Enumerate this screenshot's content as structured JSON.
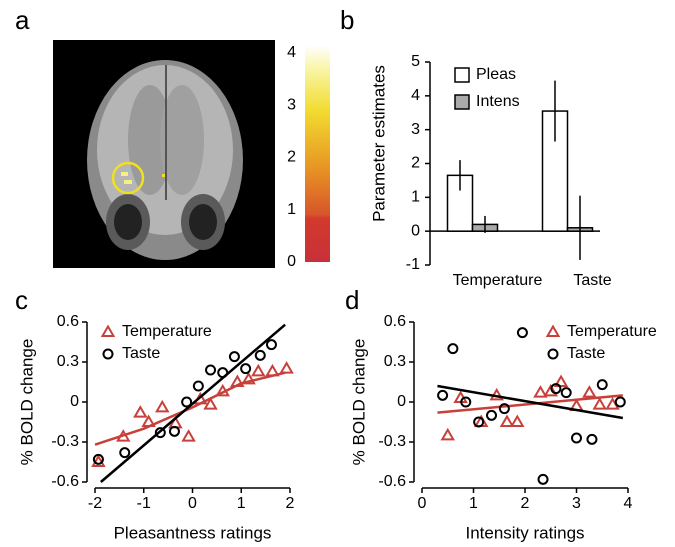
{
  "chart_data": [
    {
      "type": "colorbar",
      "title": "a",
      "ylim": [
        0,
        4.15
      ],
      "yticks": [
        0,
        1,
        2,
        3,
        4
      ]
    },
    {
      "type": "bar",
      "title": "b",
      "ylabel": "Parameter estimates",
      "categories": [
        "Temperature",
        "Taste"
      ],
      "series": [
        {
          "name": "Pleas",
          "color": "#ffffff",
          "values": [
            1.65,
            3.55
          ],
          "errors": [
            0.45,
            0.9
          ]
        },
        {
          "name": "Intens",
          "color": "#aaaaaa",
          "values": [
            0.2,
            0.1
          ],
          "errors": [
            0.25,
            0.95
          ]
        }
      ],
      "ylim": [
        -1,
        5
      ],
      "yticks": [
        -1,
        0,
        1,
        2,
        3,
        4,
        5
      ],
      "legend": "upper left"
    },
    {
      "type": "scatter",
      "title": "c",
      "xlabel": "Pleasantness ratings",
      "ylabel": "% BOLD change",
      "series": [
        {
          "name": "Temperature",
          "color": "#c8403a",
          "marker": "triangle",
          "x": [
            -1.93,
            -1.42,
            -1.07,
            -0.9,
            -0.62,
            -0.35,
            -0.08,
            0.16,
            0.37,
            0.62,
            0.92,
            1.15,
            1.35,
            1.64,
            1.93
          ],
          "y": [
            -0.45,
            -0.26,
            -0.08,
            -0.15,
            -0.04,
            -0.16,
            -0.26,
            0.02,
            -0.02,
            0.08,
            0.15,
            0.17,
            0.23,
            0.23,
            0.25
          ],
          "fit": {
            "x": [
              -2,
              -1,
              0,
              1,
              1.9
            ],
            "y": [
              -0.32,
              -0.2,
              -0.04,
              0.14,
              0.22
            ]
          }
        },
        {
          "name": "Taste",
          "color": "#000000",
          "marker": "circle",
          "x": [
            -1.93,
            -1.39,
            -0.66,
            -0.37,
            -0.12,
            0.12,
            0.37,
            0.62,
            0.86,
            1.09,
            1.39,
            1.62
          ],
          "y": [
            -0.43,
            -0.38,
            -0.23,
            -0.22,
            0,
            0.12,
            0.24,
            0.22,
            0.34,
            0.25,
            0.35,
            0.43
          ],
          "fit": {
            "x": [
              -1.88,
              1.9
            ],
            "y": [
              -0.6,
              0.58
            ]
          }
        }
      ],
      "xlim": [
        -2,
        2
      ],
      "xticks": [
        -2,
        -1,
        0,
        1,
        2
      ],
      "ylim": [
        -0.6,
        0.6
      ],
      "yticks": [
        -0.6,
        -0.3,
        0,
        0.3,
        0.6
      ],
      "legend": "upper left"
    },
    {
      "type": "scatter",
      "title": "d",
      "xlabel": "Intensity ratings",
      "ylabel": "% BOLD change",
      "series": [
        {
          "name": "Temperature",
          "color": "#c8403a",
          "marker": "triangle",
          "x": [
            0.5,
            0.75,
            1.15,
            1.45,
            1.65,
            1.85,
            2.3,
            2.5,
            2.7,
            3.0,
            3.25,
            3.45,
            3.7
          ],
          "y": [
            -0.25,
            0.03,
            -0.15,
            0.05,
            -0.15,
            -0.15,
            0.07,
            0.08,
            0.15,
            -0.03,
            0.07,
            -0.02,
            -0.02
          ],
          "fit": {
            "x": [
              0.3,
              3.9
            ],
            "y": [
              -0.08,
              0.05
            ]
          }
        },
        {
          "name": "Taste",
          "color": "#000000",
          "marker": "circle",
          "x": [
            0.4,
            0.6,
            0.85,
            1.1,
            1.35,
            1.6,
            1.95,
            2.35,
            2.6,
            2.8,
            3.0,
            3.3,
            3.5,
            3.85
          ],
          "y": [
            0.05,
            0.4,
            0.0,
            -0.15,
            -0.1,
            -0.05,
            0.52,
            -0.58,
            0.1,
            0.07,
            -0.27,
            -0.28,
            0.13,
            0.0
          ],
          "fit": {
            "x": [
              0.3,
              3.9
            ],
            "y": [
              0.12,
              -0.12
            ]
          }
        }
      ],
      "xlim": [
        0,
        4
      ],
      "xticks": [
        0,
        1,
        2,
        3,
        4
      ],
      "ylim": [
        -0.6,
        0.6
      ],
      "yticks": [
        -0.6,
        -0.3,
        0,
        0.3,
        0.6
      ],
      "legend": "upper right"
    }
  ]
}
